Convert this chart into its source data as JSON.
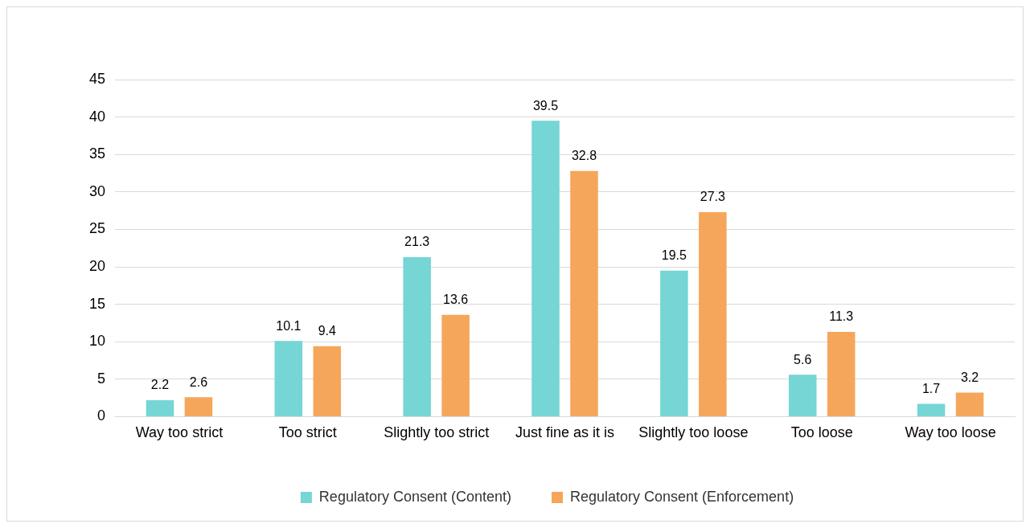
{
  "chart_data": {
    "type": "bar",
    "categories": [
      "Way too strict",
      "Too strict",
      "Slightly too strict",
      "Just fine as it is",
      "Slightly too loose",
      "Too loose",
      "Way too loose"
    ],
    "series": [
      {
        "name": "Regulatory Consent (Content)",
        "color": "#76d5d5",
        "values": [
          2.2,
          10.1,
          21.3,
          39.5,
          19.5,
          5.6,
          1.7
        ]
      },
      {
        "name": "Regulatory Consent (Enforcement)",
        "color": "#f5a65b",
        "values": [
          2.6,
          9.4,
          13.6,
          32.8,
          27.3,
          11.3,
          3.2
        ]
      }
    ],
    "ylim": [
      0,
      45
    ],
    "yticks": [
      0,
      5,
      10,
      15,
      20,
      25,
      30,
      35,
      40,
      45
    ],
    "grid": "y",
    "legend": "bottom",
    "data_labels": true
  }
}
